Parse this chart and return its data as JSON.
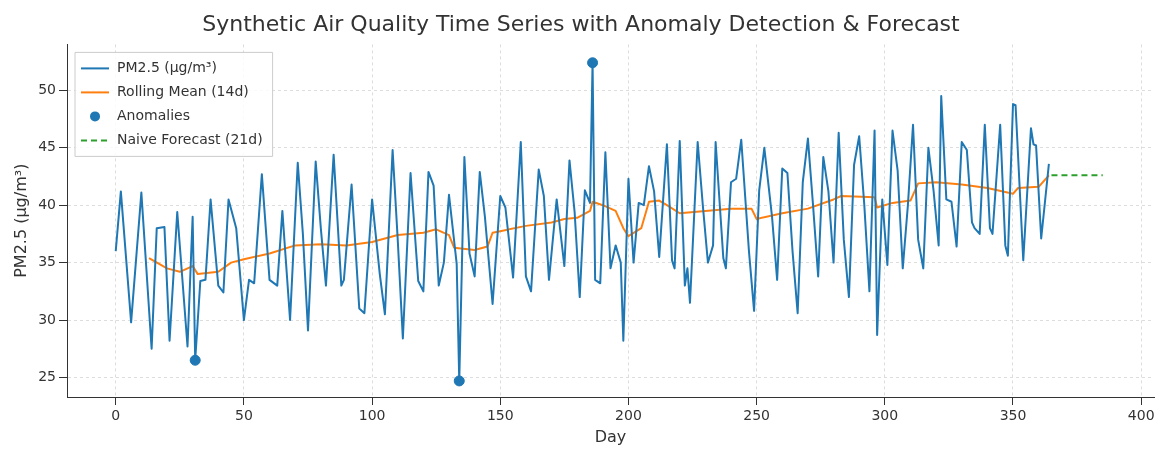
{
  "chart_data": {
    "type": "line",
    "title": "Synthetic Air Quality Time Series with Anomaly Detection & Forecast",
    "xlabel": "Day",
    "ylabel": "PM2.5 (µg/m³)",
    "xlim": [
      -19,
      405
    ],
    "ylim": [
      23.3,
      54
    ],
    "xticks": [
      0,
      50,
      100,
      150,
      200,
      250,
      300,
      350,
      400
    ],
    "yticks": [
      25,
      30,
      35,
      40,
      45,
      50
    ],
    "grid": true,
    "legend": "top left",
    "series": [
      {
        "name": "PM2.5 (µg/m³)",
        "color": "#1f77b4",
        "x": [
          0,
          2,
          6,
          10,
          14,
          16,
          19,
          21,
          24,
          28,
          30,
          31,
          33,
          35,
          37,
          40,
          42,
          44,
          47,
          50,
          52,
          54,
          57,
          60,
          63,
          65,
          68,
          71,
          73,
          75,
          78,
          80,
          82,
          85,
          88,
          89,
          92,
          95,
          97,
          100,
          103,
          105,
          108,
          110,
          112,
          115,
          118,
          120,
          122,
          124,
          126,
          128,
          130,
          133,
          134,
          136,
          138,
          140,
          142,
          144,
          147,
          150,
          152,
          155,
          158,
          160,
          162,
          165,
          167,
          169,
          172,
          175,
          177,
          179,
          181,
          183,
          185,
          186,
          187,
          189,
          191,
          193,
          195,
          197,
          198,
          200,
          202,
          204,
          206,
          208,
          210,
          212,
          215,
          217,
          218,
          220,
          222,
          223,
          224,
          227,
          229,
          231,
          233,
          234,
          237,
          238,
          240,
          242,
          244,
          247,
          249,
          251,
          253,
          256,
          258,
          260,
          262,
          264,
          266,
          268,
          270,
          272,
          274,
          276,
          278,
          280,
          282,
          284,
          286,
          288,
          290,
          292,
          294,
          296,
          297,
          299,
          301,
          303,
          305,
          307,
          309,
          311,
          313,
          315,
          317,
          319,
          321,
          322,
          324,
          326,
          328,
          330,
          332,
          334,
          335,
          337,
          339,
          341,
          342,
          345,
          347,
          348,
          350,
          351,
          354,
          357,
          358,
          359,
          361,
          364
        ],
        "values": [
          36,
          41.2,
          29.8,
          41.1,
          27.5,
          38,
          38.1,
          28.2,
          39.4,
          27.7,
          39,
          26.5,
          33.4,
          33.5,
          40.5,
          33,
          32.4,
          40.5,
          38,
          30,
          33.5,
          33.2,
          42.7,
          33.5,
          33,
          39.5,
          30,
          43.7,
          37.5,
          29.1,
          43.8,
          38,
          33,
          44.4,
          33,
          33.5,
          41.8,
          31,
          30.6,
          40.5,
          34,
          30.5,
          44.8,
          37,
          28.4,
          42.8,
          33.4,
          32.5,
          42.9,
          41.7,
          33,
          35,
          40.9,
          34.9,
          24.7,
          44.2,
          35.8,
          33.8,
          42.9,
          39,
          31.4,
          40.8,
          39.8,
          33.7,
          45.5,
          33.8,
          32.5,
          43.1,
          40.8,
          33.5,
          40.5,
          34.7,
          43.9,
          39.4,
          32,
          41.3,
          40.2,
          52.4,
          33.5,
          33.2,
          44.6,
          34.5,
          36.5,
          35,
          28.2,
          42.3,
          35,
          40.2,
          40,
          43.4,
          41.2,
          35.5,
          45.3,
          35.2,
          34.5,
          45.6,
          33,
          34.5,
          31.5,
          45.5,
          40,
          35,
          36.5,
          45.5,
          35.4,
          34.5,
          42,
          42.3,
          45.7,
          36,
          30.8,
          41.3,
          45,
          39,
          33.5,
          43.2,
          42.8,
          36,
          30.6,
          42,
          45.8,
          40,
          33.8,
          44.2,
          41.2,
          35,
          46.3,
          37,
          32,
          43.5,
          46,
          40,
          32.5,
          46.5,
          28.7,
          40.5,
          34.8,
          46.5,
          43,
          34.5,
          40,
          47,
          37,
          34.5,
          45,
          41.3,
          36.5,
          49.5,
          40.5,
          40.3,
          36.4,
          45.5,
          44.8,
          38.5,
          38,
          37.5,
          47,
          38,
          37.5,
          47,
          36.5,
          35.6,
          48.8,
          48.7,
          35.2,
          46.7,
          45.3,
          45.2,
          37.1,
          43.6
        ]
      },
      {
        "name": "Rolling Mean (14d)",
        "color": "#ff7f0e",
        "x": [
          13,
          20,
          25,
          30,
          32,
          40,
          45,
          50,
          60,
          70,
          80,
          90,
          100,
          110,
          120,
          125,
          130,
          132,
          140,
          145,
          147,
          160,
          170,
          175,
          180,
          185,
          186,
          190,
          195,
          198,
          200,
          205,
          208,
          212,
          215,
          220,
          230,
          240,
          248,
          250,
          260,
          270,
          280,
          283,
          296,
          297,
          303,
          310,
          313,
          320,
          330,
          340,
          350,
          352,
          360,
          364
        ],
        "values": [
          35.4,
          34.5,
          34.2,
          34.7,
          34,
          34.2,
          35,
          35.3,
          35.8,
          36.5,
          36.6,
          36.5,
          36.8,
          37.4,
          37.6,
          37.9,
          37.4,
          36.3,
          36.1,
          36.4,
          37.6,
          38.2,
          38.5,
          38.8,
          38.9,
          39.5,
          40.3,
          40,
          39.5,
          38,
          37.3,
          38,
          40.3,
          40.4,
          40,
          39.3,
          39.5,
          39.7,
          39.7,
          38.8,
          39.3,
          39.7,
          40.5,
          40.8,
          40.7,
          39.8,
          40.2,
          40.4,
          41.9,
          42,
          41.8,
          41.5,
          41,
          41.5,
          41.6,
          42.6
        ]
      },
      {
        "name": "Anomalies",
        "type": "scatter",
        "color": "#1f77b4",
        "marker": "circle",
        "x": [
          31,
          134,
          186
        ],
        "values": [
          26.5,
          24.7,
          52.4
        ]
      },
      {
        "name": "Naive Forecast (21d)",
        "color": "#2ca02c",
        "line_style": "dashed",
        "x": [
          365,
          385
        ],
        "values": [
          42.6,
          42.6
        ]
      }
    ]
  }
}
